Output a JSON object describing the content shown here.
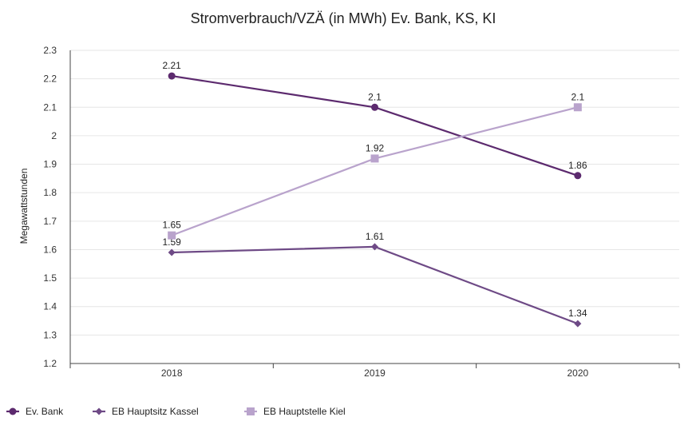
{
  "chart_data": {
    "type": "line",
    "title": "Stromverbrauch/VZÄ (in MWh) Ev. Bank, KS, KI",
    "xlabel": "",
    "ylabel": "Megawattstunden",
    "ylim": [
      1.2,
      2.3
    ],
    "yticks": [
      "1.2",
      "1.3",
      "1.4",
      "1.5",
      "1.6",
      "1.7",
      "1.8",
      "1.9",
      "2",
      "2.1",
      "2.2",
      "2.3"
    ],
    "categories": [
      "2018",
      "2019",
      "2020"
    ],
    "grid": true,
    "legend_position": "bottom-left",
    "series": [
      {
        "name": "Ev. Bank",
        "values": [
          2.21,
          2.1,
          1.86
        ],
        "labels": [
          "2.21",
          "2.1",
          "1.86"
        ],
        "color": "#5c2a6e",
        "marker": "circle"
      },
      {
        "name": "EB Hauptsitz Kassel",
        "values": [
          1.59,
          1.61,
          1.34
        ],
        "labels": [
          "1.59",
          "1.61",
          "1.34"
        ],
        "color": "#6e4a86",
        "marker": "diamond"
      },
      {
        "name": "EB Hauptstelle Kiel",
        "values": [
          1.65,
          1.92,
          2.1
        ],
        "labels": [
          "1.65",
          "1.92",
          "2.1"
        ],
        "color": "#b9a3cc",
        "marker": "square"
      }
    ]
  }
}
